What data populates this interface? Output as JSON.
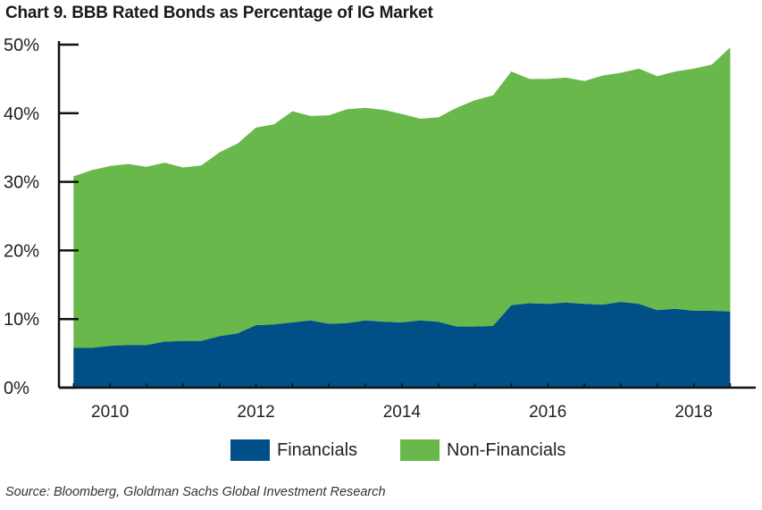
{
  "title": "Chart 9. BBB Rated Bonds as Percentage of IG Market",
  "source": "Source: Bloomberg, Gloldman Sachs Global Investment Research",
  "colors": {
    "financials": "#004f86",
    "non_financials": "#69b84b",
    "axis": "#111111"
  },
  "chart_data": {
    "type": "area",
    "stacked": true,
    "x": [
      2009.5,
      2009.75,
      2010.0,
      2010.25,
      2010.5,
      2010.75,
      2011.0,
      2011.25,
      2011.5,
      2011.75,
      2012.0,
      2012.25,
      2012.5,
      2012.75,
      2013.0,
      2013.25,
      2013.5,
      2013.75,
      2014.0,
      2014.25,
      2014.5,
      2014.75,
      2015.0,
      2015.25,
      2015.5,
      2015.75,
      2016.0,
      2016.25,
      2016.5,
      2016.75,
      2017.0,
      2017.25,
      2017.5,
      2017.75,
      2018.0,
      2018.25,
      2018.5
    ],
    "series": [
      {
        "name": "Financials",
        "values": [
          5.8,
          5.8,
          6.1,
          6.2,
          6.2,
          6.7,
          6.8,
          6.8,
          7.5,
          7.9,
          9.1,
          9.2,
          9.5,
          9.8,
          9.3,
          9.4,
          9.8,
          9.6,
          9.5,
          9.8,
          9.6,
          8.9,
          8.9,
          9.0,
          12.0,
          12.3,
          12.2,
          12.4,
          12.2,
          12.1,
          12.5,
          12.2,
          11.3,
          11.5,
          11.2,
          11.2,
          11.1
        ]
      },
      {
        "name": "Non-Financials",
        "values": [
          25.0,
          25.9,
          26.2,
          26.4,
          26.0,
          26.1,
          25.3,
          25.6,
          26.8,
          27.7,
          28.8,
          29.2,
          30.8,
          29.8,
          30.4,
          31.2,
          31.0,
          30.9,
          30.4,
          29.4,
          29.8,
          31.9,
          33.0,
          33.6,
          34.1,
          32.7,
          32.8,
          32.8,
          32.5,
          33.4,
          33.4,
          34.3,
          34.1,
          34.6,
          35.3,
          35.9,
          38.5
        ]
      }
    ],
    "xlim": [
      2009.3,
      2018.85
    ],
    "ylim": [
      0,
      50
    ],
    "yticks": [
      0,
      10,
      20,
      30,
      40,
      50
    ],
    "ytick_labels": [
      "0%",
      "10%",
      "20%",
      "30%",
      "40%",
      "50%"
    ],
    "xticks": [
      2010,
      2012,
      2014,
      2016,
      2018
    ],
    "xtick_labels": [
      "2010",
      "2012",
      "2014",
      "2016",
      "2018"
    ],
    "legend": [
      "Financials",
      "Non-Financials"
    ],
    "legend_position": "bottom",
    "grid": false
  }
}
